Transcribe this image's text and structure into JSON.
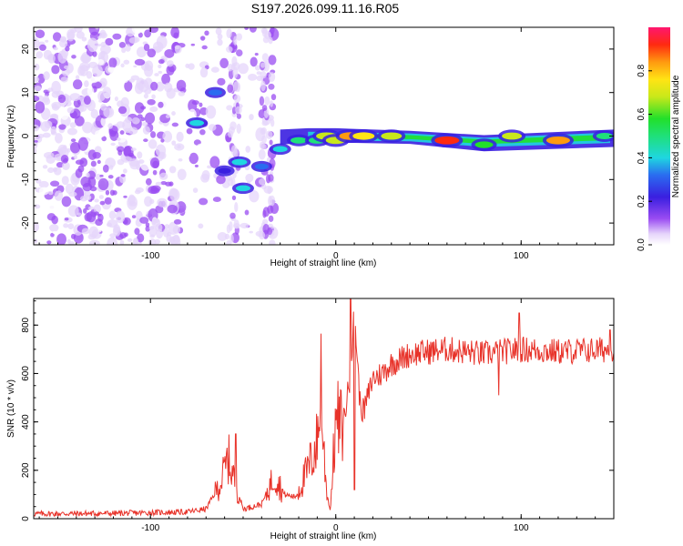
{
  "title": "S197.2026.099.11.16.R05",
  "chart_data": [
    {
      "type": "heatmap",
      "name": "spectrogram",
      "xlabel": "Height of straight line (km)",
      "ylabel": "Frequency (Hz)",
      "xlim": [
        -163,
        150
      ],
      "ylim": [
        -25,
        25
      ],
      "xticks": [
        -100,
        0,
        100
      ],
      "xtick_labels": [
        "-100",
        "0",
        "100"
      ],
      "yticks": [
        -20,
        -10,
        0,
        10,
        20
      ],
      "ytick_labels": [
        "-20",
        "-10",
        "0",
        "10",
        "20"
      ],
      "description_points": [
        {
          "x": -65,
          "y": 10,
          "amp": 0.35
        },
        {
          "x": -75,
          "y": 3,
          "amp": 0.4
        },
        {
          "x": -60,
          "y": -8,
          "amp": 0.3
        },
        {
          "x": -52,
          "y": -6,
          "amp": 0.45
        },
        {
          "x": -50,
          "y": -12,
          "amp": 0.4
        },
        {
          "x": -40,
          "y": -7,
          "amp": 0.35
        },
        {
          "x": -30,
          "y": -3,
          "amp": 0.4
        },
        {
          "x": -20,
          "y": -1,
          "amp": 0.5
        },
        {
          "x": -10,
          "y": -1,
          "amp": 0.55
        },
        {
          "x": -5,
          "y": 0,
          "amp": 0.75
        },
        {
          "x": 0,
          "y": -1,
          "amp": 0.7
        },
        {
          "x": 8,
          "y": 0,
          "amp": 0.85
        },
        {
          "x": 15,
          "y": 0,
          "amp": 0.8
        },
        {
          "x": 30,
          "y": 0,
          "amp": 0.75
        },
        {
          "x": 60,
          "y": -1,
          "amp": 0.95
        },
        {
          "x": 80,
          "y": -2,
          "amp": 0.6
        },
        {
          "x": 95,
          "y": 0,
          "amp": 0.7
        },
        {
          "x": 120,
          "y": -1,
          "amp": 0.9
        },
        {
          "x": 145,
          "y": 0,
          "amp": 0.5
        }
      ],
      "colorbar": {
        "label": "Normalized spectral amplitude",
        "range": [
          0.0,
          1.0
        ],
        "ticks": [
          0.0,
          0.2,
          0.4,
          0.6,
          0.8
        ],
        "tick_labels": [
          "0.0",
          "0.2",
          "0.4",
          "0.6",
          "0.8"
        ]
      }
    },
    {
      "type": "line",
      "name": "snr",
      "color": "#e8332a",
      "xlabel": "Height of straight line (km)",
      "ylabel": "SNR (10 * v/v)",
      "xlim": [
        -163,
        150
      ],
      "ylim": [
        0,
        910
      ],
      "xticks": [
        -100,
        0,
        100
      ],
      "xtick_labels": [
        "-100",
        "0",
        "100"
      ],
      "yticks": [
        0,
        200,
        400,
        600,
        800
      ],
      "ytick_labels": [
        "0",
        "200",
        "400",
        "600",
        "800"
      ],
      "envelope": {
        "x": [
          -163,
          -120,
          -80,
          -70,
          -62,
          -58,
          -55,
          -50,
          -45,
          -40,
          -33,
          -28,
          -22,
          -15,
          -10,
          -8,
          -5,
          -3,
          0,
          3,
          5,
          8,
          10,
          13,
          15,
          20,
          25,
          30,
          40,
          50,
          60,
          70,
          80,
          100,
          120,
          150
        ],
        "y": [
          20,
          22,
          28,
          40,
          150,
          250,
          170,
          40,
          50,
          60,
          180,
          100,
          90,
          200,
          320,
          450,
          120,
          30,
          410,
          380,
          440,
          600,
          870,
          480,
          440,
          580,
          600,
          640,
          680,
          690,
          700,
          690,
          680,
          700,
          690,
          700
        ]
      },
      "spikes": [
        {
          "x": -54,
          "y": 350
        },
        {
          "x": -8,
          "y": 765
        },
        {
          "x": 8,
          "y": 910
        },
        {
          "x": 10,
          "y": 120
        },
        {
          "x": 88,
          "y": 510
        },
        {
          "x": 99,
          "y": 850
        },
        {
          "x": 148,
          "y": 780
        }
      ]
    }
  ]
}
